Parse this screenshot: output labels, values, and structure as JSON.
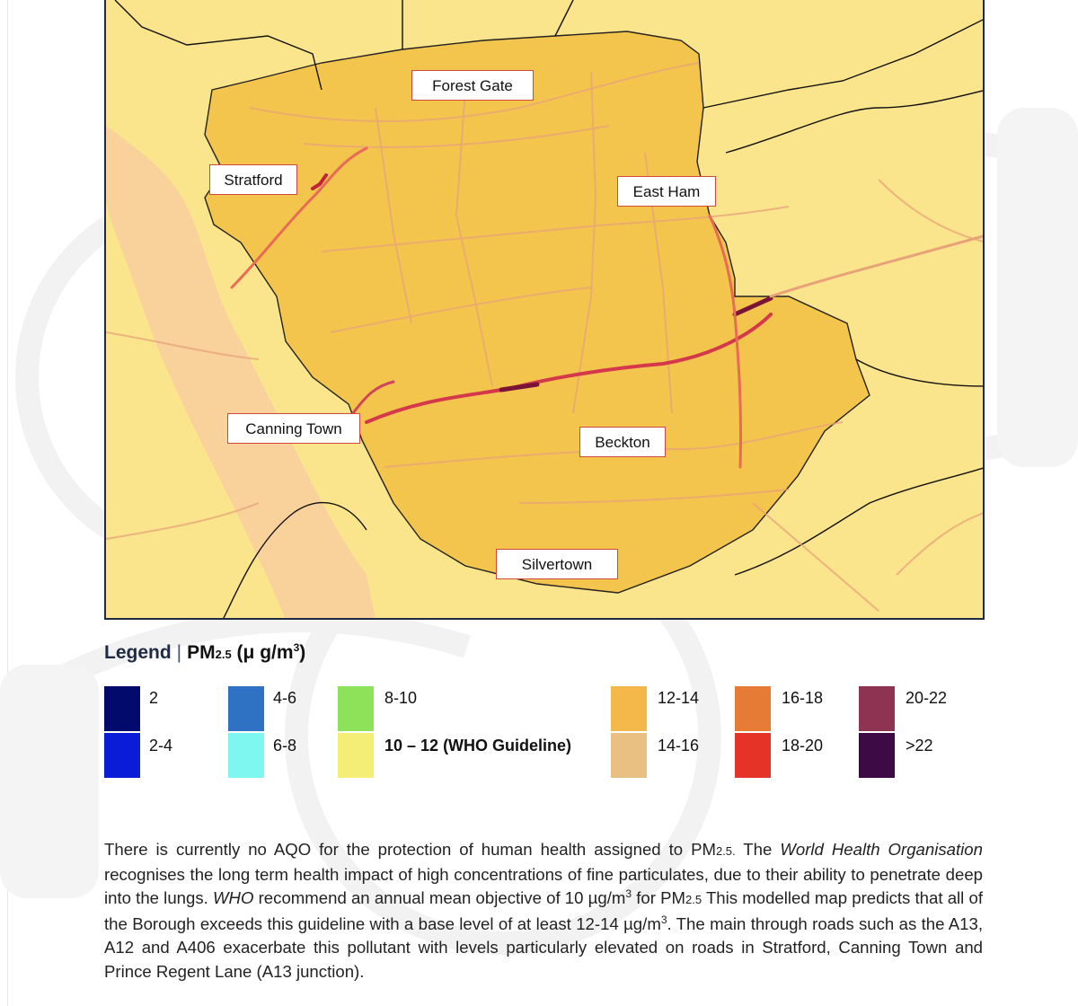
{
  "map": {
    "places": [
      {
        "id": "forest-gate",
        "label": "Forest Gate"
      },
      {
        "id": "stratford",
        "label": "Stratford"
      },
      {
        "id": "east-ham",
        "label": "East Ham"
      },
      {
        "id": "canning-town",
        "label": "Canning Town"
      },
      {
        "id": "beckton",
        "label": "Beckton"
      },
      {
        "id": "silvertown",
        "label": "Silvertown"
      }
    ]
  },
  "legend": {
    "title_word": "Legend",
    "separator": "|",
    "pm_prefix": "PM",
    "pm_subscript": "2.5",
    "unit_open": " (μ g/m",
    "unit_sup": "3",
    "unit_close": ")",
    "items": [
      {
        "label": "2",
        "color": "#020a6b"
      },
      {
        "label": "2-4",
        "color": "#0a1cd8"
      },
      {
        "label": "4-6",
        "color": "#2f72c4"
      },
      {
        "label": "6-8",
        "color": "#7df7f0"
      },
      {
        "label": "8-10",
        "color": "#8ee25a"
      },
      {
        "label": "10",
        "label_rest": " – 12  (WHO Guideline)",
        "color": "#f4ee77"
      },
      {
        "label": "12-14",
        "color": "#f4b84a"
      },
      {
        "label": "14-16",
        "color": "#e9bf82"
      },
      {
        "label": "16-18",
        "color": "#e57b35"
      },
      {
        "label": "18-20",
        "color": "#e53327"
      },
      {
        "label": "20-22",
        "color": "#8e3452"
      },
      {
        "label": ">22",
        "color": "#3d0a45"
      }
    ]
  },
  "body": {
    "t1": "There is currently no AQO for the protection of human health assigned to PM",
    "t1_sub": "2.5.",
    "t2": "  The ",
    "t2_em": "World Health Organisation",
    "t3": " recognises the long term health impact of high concentrations of fine particulates, due to their ability to penetrate deep into the lungs.  ",
    "t3_em": "WHO",
    "t4": " recommend an annual mean objective of 10 µg/m",
    "t4_sup": "3",
    "t5": " for PM",
    "t5_sub": "2.5",
    "t6": "  This modelled map predicts that all of the Borough exceeds this guideline with a base level of at least 12-14 µg/m",
    "t6_sup": "3",
    "t7": ".  The main through roads such as the A13, A12 and A406 exacerbate this pollutant with levels particularly elevated on roads in Stratford, Canning Town and Prince Regent Lane (A13 junction)."
  }
}
